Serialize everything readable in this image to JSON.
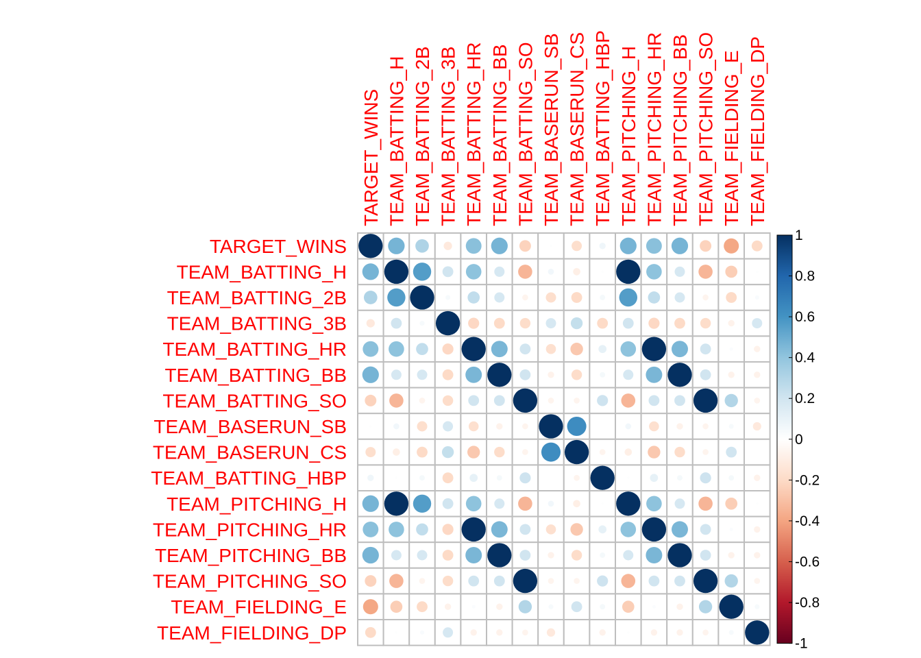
{
  "chart_data": {
    "type": "heatmap",
    "title": "",
    "variables": [
      "TARGET_WINS",
      "TEAM_BATTING_H",
      "TEAM_BATTING_2B",
      "TEAM_BATTING_3B",
      "TEAM_BATTING_HR",
      "TEAM_BATTING_BB",
      "TEAM_BATTING_SO",
      "TEAM_BASERUN_SB",
      "TEAM_BASERUN_CS",
      "TEAM_BATTING_HBP",
      "TEAM_PITCHING_H",
      "TEAM_PITCHING_HR",
      "TEAM_PITCHING_BB",
      "TEAM_PITCHING_SO",
      "TEAM_FIELDING_E",
      "TEAM_FIELDING_DP"
    ],
    "matrix": [
      [
        1.0,
        0.47,
        0.31,
        -0.12,
        0.42,
        0.47,
        -0.23,
        0.01,
        -0.18,
        0.07,
        0.47,
        0.42,
        0.47,
        -0.23,
        -0.39,
        -0.2
      ],
      [
        0.47,
        1.0,
        0.56,
        0.2,
        0.41,
        0.18,
        -0.34,
        0.06,
        -0.09,
        0.01,
        1.0,
        0.41,
        0.18,
        -0.34,
        -0.25,
        0.01
      ],
      [
        0.31,
        0.56,
        1.0,
        0.04,
        0.25,
        0.18,
        -0.06,
        -0.18,
        -0.2,
        0.05,
        0.56,
        0.25,
        0.18,
        -0.06,
        -0.2,
        0.03
      ],
      [
        -0.12,
        0.2,
        0.04,
        1.0,
        -0.21,
        -0.2,
        -0.19,
        0.18,
        0.24,
        -0.2,
        0.2,
        -0.21,
        -0.2,
        -0.19,
        -0.07,
        0.18
      ],
      [
        0.42,
        0.41,
        0.25,
        -0.21,
        1.0,
        0.46,
        0.2,
        -0.17,
        -0.27,
        0.11,
        0.41,
        1.0,
        0.46,
        0.2,
        0.02,
        -0.07
      ],
      [
        0.47,
        0.18,
        0.18,
        -0.2,
        0.46,
        1.0,
        0.2,
        -0.07,
        -0.19,
        0.05,
        0.18,
        0.46,
        1.0,
        0.2,
        -0.07,
        -0.07
      ],
      [
        -0.23,
        -0.34,
        -0.06,
        -0.19,
        0.2,
        0.2,
        1.0,
        -0.06,
        -0.06,
        0.21,
        -0.34,
        0.2,
        0.2,
        1.0,
        0.3,
        -0.06
      ],
      [
        0.01,
        0.06,
        -0.18,
        0.18,
        -0.17,
        -0.07,
        -0.06,
        1.0,
        0.63,
        0.0,
        0.06,
        -0.17,
        -0.07,
        -0.06,
        0.04,
        -0.12
      ],
      [
        -0.18,
        -0.09,
        -0.2,
        0.24,
        -0.27,
        -0.19,
        -0.06,
        0.63,
        1.0,
        -0.06,
        -0.09,
        -0.27,
        -0.19,
        -0.06,
        0.2,
        0.0
      ],
      [
        0.07,
        0.01,
        0.05,
        -0.2,
        0.11,
        0.05,
        0.21,
        0.0,
        -0.06,
        1.0,
        0.01,
        0.11,
        0.05,
        0.21,
        0.05,
        -0.07
      ],
      [
        0.47,
        1.0,
        0.56,
        0.2,
        0.41,
        0.18,
        -0.34,
        0.06,
        -0.09,
        0.01,
        1.0,
        0.41,
        0.18,
        -0.34,
        -0.25,
        0.01
      ],
      [
        0.42,
        0.41,
        0.25,
        -0.21,
        1.0,
        0.46,
        0.2,
        -0.17,
        -0.27,
        0.11,
        0.41,
        1.0,
        0.46,
        0.2,
        0.02,
        -0.07
      ],
      [
        0.47,
        0.18,
        0.18,
        -0.2,
        0.46,
        1.0,
        0.2,
        -0.07,
        -0.19,
        0.05,
        0.18,
        0.46,
        1.0,
        0.2,
        -0.07,
        -0.07
      ],
      [
        -0.23,
        -0.34,
        -0.06,
        -0.19,
        0.2,
        0.2,
        1.0,
        -0.06,
        -0.06,
        0.21,
        -0.34,
        0.2,
        0.2,
        1.0,
        0.3,
        -0.06
      ],
      [
        -0.39,
        -0.25,
        -0.2,
        -0.07,
        0.02,
        -0.07,
        0.3,
        0.04,
        0.2,
        0.05,
        -0.25,
        0.02,
        -0.07,
        0.3,
        1.0,
        0.04
      ],
      [
        -0.2,
        0.01,
        0.03,
        0.18,
        -0.07,
        -0.07,
        -0.06,
        -0.12,
        0.0,
        -0.07,
        0.01,
        -0.07,
        -0.07,
        -0.06,
        0.04,
        1.0
      ]
    ],
    "colorbar": {
      "ticks": [
        "1",
        "0.8",
        "0.6",
        "0.4",
        "0.2",
        "0",
        "-0.2",
        "-0.4",
        "-0.6",
        "-0.8",
        "-1"
      ],
      "range": [
        -1,
        1
      ],
      "colors": [
        "#67001F",
        "#B2182B",
        "#D6604D",
        "#F4A582",
        "#FDDBC7",
        "#FFFFFF",
        "#D1E5F0",
        "#92C5DE",
        "#4393C3",
        "#2166AC",
        "#053061"
      ]
    },
    "label_color": "#FF0000",
    "grid_color": "#BEBEBE"
  }
}
